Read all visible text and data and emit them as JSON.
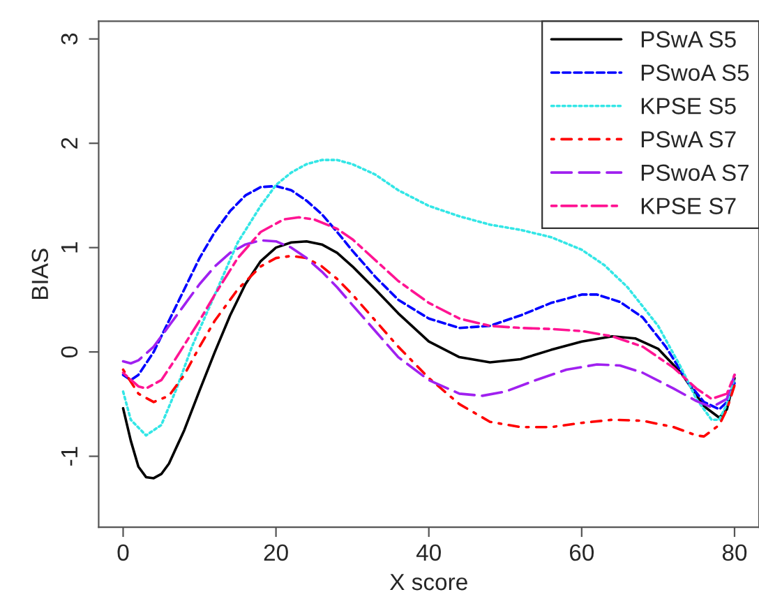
{
  "chart_data": {
    "type": "line",
    "xlabel": "X score",
    "ylabel": "BIAS",
    "xlim": [
      -3.2,
      83.2
    ],
    "ylim": [
      -1.68,
      3.17
    ],
    "xticks": [
      0,
      20,
      40,
      60,
      80
    ],
    "yticks": [
      -1,
      0,
      1,
      2,
      3
    ],
    "grid": false,
    "legend": "top right",
    "marker": "none",
    "series": [
      {
        "name": "PSwA S5",
        "color": "#000000",
        "line_style": "solid",
        "x": [
          0,
          1,
          2,
          3,
          4,
          5,
          6,
          8,
          10,
          12,
          14,
          16,
          18,
          20,
          22,
          24,
          26,
          28,
          30,
          33,
          36,
          40,
          44,
          48,
          52,
          56,
          60,
          64,
          67,
          70,
          73,
          76,
          78,
          79,
          80
        ],
        "values": [
          -0.54,
          -0.85,
          -1.1,
          -1.2,
          -1.21,
          -1.17,
          -1.07,
          -0.75,
          -0.37,
          0.0,
          0.35,
          0.65,
          0.87,
          1.0,
          1.05,
          1.06,
          1.03,
          0.95,
          0.82,
          0.6,
          0.37,
          0.1,
          -0.05,
          -0.1,
          -0.07,
          0.02,
          0.1,
          0.15,
          0.13,
          0.03,
          -0.2,
          -0.52,
          -0.63,
          -0.55,
          -0.25
        ]
      },
      {
        "name": "PSwoA S5",
        "color": "#0000ff",
        "line_style": "dashed",
        "x": [
          0,
          1,
          2,
          4,
          6,
          8,
          10,
          12,
          14,
          16,
          18,
          20,
          22,
          24,
          26,
          28,
          30,
          33,
          36,
          40,
          44,
          48,
          52,
          56,
          60,
          62,
          65,
          68,
          71,
          74,
          76,
          78,
          79,
          80
        ],
        "values": [
          -0.22,
          -0.27,
          -0.22,
          0.0,
          0.3,
          0.6,
          0.9,
          1.15,
          1.35,
          1.5,
          1.58,
          1.59,
          1.55,
          1.45,
          1.32,
          1.15,
          0.97,
          0.72,
          0.5,
          0.32,
          0.23,
          0.25,
          0.35,
          0.47,
          0.55,
          0.55,
          0.48,
          0.33,
          0.05,
          -0.3,
          -0.48,
          -0.55,
          -0.48,
          -0.3
        ]
      },
      {
        "name": "KPSE S5",
        "color": "#33e6e6",
        "line_style": "dotted",
        "x": [
          0,
          1,
          3,
          5,
          7,
          9,
          12,
          15,
          18,
          20,
          22,
          24,
          26,
          28,
          30,
          33,
          36,
          40,
          44,
          48,
          52,
          56,
          60,
          63,
          66,
          70,
          73,
          75,
          77,
          78,
          79,
          80
        ],
        "values": [
          -0.38,
          -0.65,
          -0.8,
          -0.7,
          -0.35,
          0.05,
          0.55,
          1.05,
          1.4,
          1.6,
          1.72,
          1.8,
          1.84,
          1.84,
          1.8,
          1.7,
          1.55,
          1.4,
          1.3,
          1.22,
          1.17,
          1.1,
          0.98,
          0.83,
          0.62,
          0.25,
          -0.15,
          -0.45,
          -0.65,
          -0.65,
          -0.5,
          -0.25
        ]
      },
      {
        "name": "PSwA S7",
        "color": "#ff0000",
        "line_style": "dotdash",
        "x": [
          0,
          2,
          4,
          6,
          8,
          10,
          12,
          15,
          18,
          20,
          22,
          24,
          26,
          28,
          30,
          33,
          36,
          40,
          44,
          48,
          52,
          56,
          60,
          64,
          68,
          72,
          75,
          76,
          78,
          79,
          80
        ],
        "values": [
          -0.17,
          -0.4,
          -0.48,
          -0.42,
          -0.22,
          0.05,
          0.3,
          0.6,
          0.82,
          0.9,
          0.92,
          0.9,
          0.82,
          0.7,
          0.55,
          0.3,
          0.05,
          -0.25,
          -0.5,
          -0.67,
          -0.72,
          -0.72,
          -0.68,
          -0.65,
          -0.66,
          -0.72,
          -0.8,
          -0.81,
          -0.7,
          -0.55,
          -0.32
        ]
      },
      {
        "name": "PSwoA S7",
        "color": "#a020f0",
        "line_style": "longdash",
        "x": [
          0,
          1,
          2,
          4,
          6,
          8,
          10,
          12,
          14,
          16,
          18,
          20,
          22,
          24,
          26,
          28,
          30,
          33,
          36,
          40,
          44,
          47,
          50,
          54,
          58,
          62,
          65,
          68,
          72,
          75,
          77,
          79,
          80
        ],
        "values": [
          -0.09,
          -0.11,
          -0.08,
          0.05,
          0.25,
          0.45,
          0.65,
          0.82,
          0.95,
          1.03,
          1.07,
          1.06,
          1.0,
          0.9,
          0.77,
          0.62,
          0.45,
          0.2,
          -0.05,
          -0.27,
          -0.4,
          -0.42,
          -0.38,
          -0.27,
          -0.17,
          -0.12,
          -0.13,
          -0.2,
          -0.35,
          -0.47,
          -0.53,
          -0.45,
          -0.22
        ]
      },
      {
        "name": "KPSE S7",
        "color": "#ff1493",
        "line_style": "twodash",
        "x": [
          0,
          2,
          3,
          5,
          7,
          10,
          12,
          15,
          18,
          21,
          23,
          25,
          28,
          30,
          33,
          36,
          40,
          44,
          48,
          52,
          56,
          60,
          64,
          68,
          72,
          75,
          77,
          79,
          80
        ],
        "values": [
          -0.2,
          -0.33,
          -0.35,
          -0.27,
          -0.05,
          0.3,
          0.55,
          0.9,
          1.15,
          1.27,
          1.29,
          1.27,
          1.18,
          1.08,
          0.88,
          0.68,
          0.47,
          0.32,
          0.25,
          0.23,
          0.22,
          0.2,
          0.15,
          0.05,
          -0.15,
          -0.35,
          -0.45,
          -0.4,
          -0.22
        ]
      }
    ]
  }
}
